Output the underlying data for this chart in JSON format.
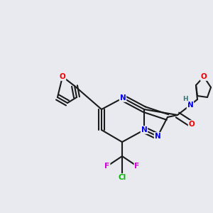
{
  "bg_color": "#e8eaf0",
  "bond_color": "#1a1a1a",
  "bond_width": 1.5,
  "atom_colors": {
    "N": "#0000ee",
    "O": "#ee0000",
    "F": "#cc00cc",
    "Cl": "#00bb00",
    "H": "#337777",
    "C": "#1a1a1a"
  },
  "font_size": 7.5,
  "figsize": [
    3.0,
    3.0
  ],
  "dpi": 100
}
